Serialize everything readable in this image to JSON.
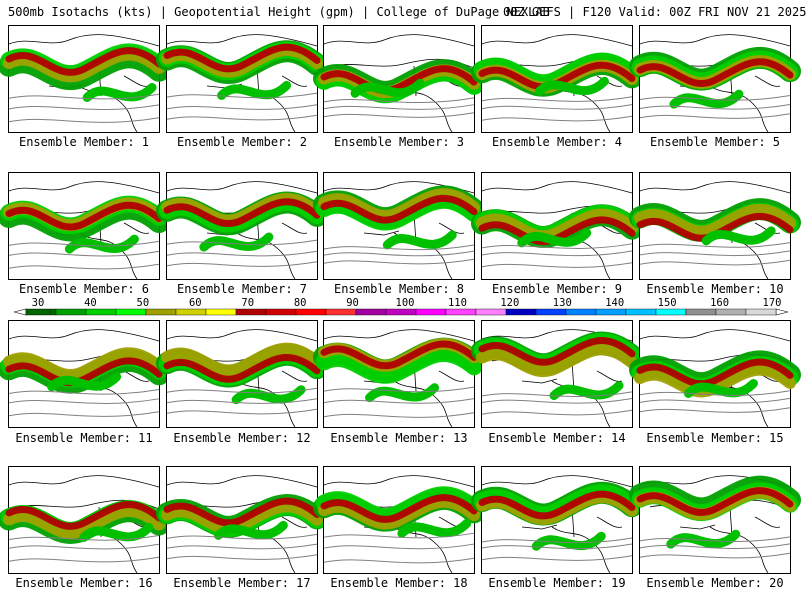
{
  "header": {
    "title": "500mb Isotachs (kts) | Geopotential Height (gpm) | College of DuPage NEXLAB",
    "run_info": "00Z GEFS | F120 Valid: 00Z FRI NOV 21 2025"
  },
  "members": [
    {
      "label": "Ensemble Member: 1"
    },
    {
      "label": "Ensemble Member: 2"
    },
    {
      "label": "Ensemble Member: 3"
    },
    {
      "label": "Ensemble Member: 4"
    },
    {
      "label": "Ensemble Member: 5"
    },
    {
      "label": "Ensemble Member: 6"
    },
    {
      "label": "Ensemble Member: 7"
    },
    {
      "label": "Ensemble Member: 8"
    },
    {
      "label": "Ensemble Member: 9"
    },
    {
      "label": "Ensemble Member: 10"
    },
    {
      "label": "Ensemble Member: 11"
    },
    {
      "label": "Ensemble Member: 12"
    },
    {
      "label": "Ensemble Member: 13"
    },
    {
      "label": "Ensemble Member: 14"
    },
    {
      "label": "Ensemble Member: 15"
    },
    {
      "label": "Ensemble Member: 16"
    },
    {
      "label": "Ensemble Member: 17"
    },
    {
      "label": "Ensemble Member: 18"
    },
    {
      "label": "Ensemble Member: 19"
    },
    {
      "label": "Ensemble Member: 20"
    }
  ],
  "legend": {
    "unit": "kts",
    "ticks": [
      "30",
      "40",
      "50",
      "60",
      "70",
      "80",
      "90",
      "100",
      "110",
      "120",
      "130",
      "140",
      "150",
      "160",
      "170"
    ],
    "colors": [
      "#006400",
      "#00a000",
      "#00d000",
      "#00ff00",
      "#a0a000",
      "#d0d000",
      "#ffff00",
      "#b00000",
      "#d00000",
      "#ff0000",
      "#ff3030",
      "#a000a0",
      "#c000c0",
      "#ff00ff",
      "#ff40ff",
      "#ff80ff",
      "#0000c0",
      "#0040ff",
      "#0080ff",
      "#00a0ff",
      "#00c0ff",
      "#00ffff",
      "#909090",
      "#b0b0b0",
      "#d8d8d8"
    ]
  }
}
